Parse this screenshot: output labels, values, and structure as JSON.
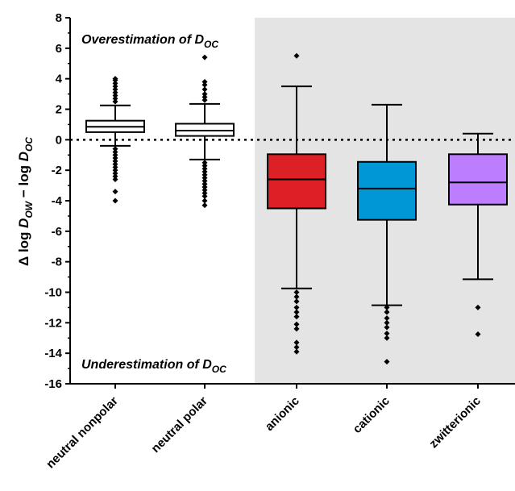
{
  "chart_data": {
    "type": "box",
    "ylabel": {
      "prefix": "Δ log ",
      "d1": "D",
      "d1_sub": "OW",
      "middle": " − log ",
      "d2": "D",
      "d2_sub": "OC"
    },
    "ylim": [
      -16,
      8
    ],
    "yticks": [
      "8",
      "6",
      "4",
      "2",
      "0",
      "-2",
      "-4",
      "-6",
      "-8",
      "-10",
      "-12",
      "-14",
      "-16"
    ],
    "ytick_values": [
      8,
      6,
      4,
      2,
      0,
      -2,
      -4,
      -6,
      -8,
      -10,
      -12,
      -14,
      -16
    ],
    "reference_line": {
      "y": 0,
      "style": "dotted"
    },
    "shaded_region": {
      "from_category": "anionic",
      "to_category": "zwitterionic",
      "color": "#e4e4e4"
    },
    "annotations": {
      "over": {
        "text": "Overestimation of ",
        "d": "D",
        "sub": "OC"
      },
      "under": {
        "text": "Underestimation of ",
        "d": "D",
        "sub": "OC"
      }
    },
    "categories": [
      "neutral nonpolar",
      "neutral polar",
      "anionic",
      "cationic",
      "zwitterionic"
    ],
    "boxes": [
      {
        "name": "neutral nonpolar",
        "color": "#ffffff",
        "whisker_low": -0.4,
        "q1": 0.5,
        "median": 0.85,
        "q3": 1.25,
        "whisker_high": 2.25,
        "outliers": [
          2.5,
          2.7,
          2.9,
          3.1,
          3.3,
          3.5,
          3.7,
          3.9,
          4.0,
          -0.6,
          -0.8,
          -1.0,
          -1.2,
          -1.4,
          -1.6,
          -1.8,
          -2.0,
          -2.2,
          -2.4,
          -2.6,
          -3.4,
          -4.0
        ]
      },
      {
        "name": "neutral polar",
        "color": "#ffffff",
        "whisker_low": -1.3,
        "q1": 0.25,
        "median": 0.6,
        "q3": 1.05,
        "whisker_high": 2.35,
        "outliers": [
          2.6,
          2.8,
          3.0,
          3.3,
          3.6,
          3.8,
          5.4,
          -1.5,
          -1.7,
          -1.9,
          -2.1,
          -2.3,
          -2.5,
          -2.7,
          -2.9,
          -3.1,
          -3.3,
          -3.5,
          -3.7,
          -4.0,
          -4.3
        ]
      },
      {
        "name": "anionic",
        "color": "#dd1f26",
        "whisker_low": -9.75,
        "q1": -4.5,
        "median": -2.6,
        "q3": -0.95,
        "whisker_high": 3.5,
        "outliers": [
          5.5,
          -10.0,
          -10.3,
          -10.6,
          -11.0,
          -11.3,
          -11.6,
          -12.1,
          -12.4,
          -13.3,
          -13.6,
          -13.9
        ]
      },
      {
        "name": "cationic",
        "color": "#0097d7",
        "whisker_low": -10.85,
        "q1": -5.25,
        "median": -3.2,
        "q3": -1.45,
        "whisker_high": 2.3,
        "outliers": [
          -11.0,
          -11.3,
          -11.7,
          -12.0,
          -12.3,
          -12.7,
          -13.0,
          -14.55
        ]
      },
      {
        "name": "zwitterionic",
        "color": "#bc7eff",
        "whisker_low": -9.15,
        "q1": -4.25,
        "median": -2.8,
        "q3": -0.95,
        "whisker_high": 0.4,
        "outliers": [
          -11.0,
          -12.75
        ]
      }
    ]
  }
}
